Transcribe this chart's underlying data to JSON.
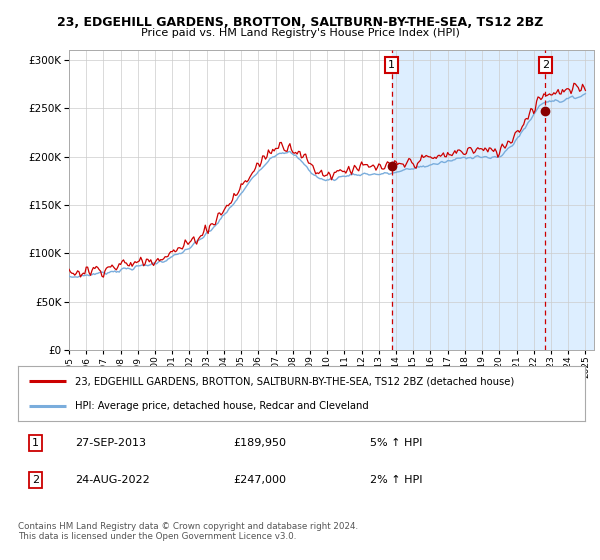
{
  "title1": "23, EDGEHILL GARDENS, BROTTON, SALTBURN-BY-THE-SEA, TS12 2BZ",
  "title2": "Price paid vs. HM Land Registry's House Price Index (HPI)",
  "legend_line1": "23, EDGEHILL GARDENS, BROTTON, SALTBURN-BY-THE-SEA, TS12 2BZ (detached house)",
  "legend_line2": "HPI: Average price, detached house, Redcar and Cleveland",
  "annotation1_date": "27-SEP-2013",
  "annotation1_price": "£189,950",
  "annotation1_hpi": "5% ↑ HPI",
  "annotation2_date": "24-AUG-2022",
  "annotation2_price": "£247,000",
  "annotation2_hpi": "2% ↑ HPI",
  "footer": "Contains HM Land Registry data © Crown copyright and database right 2024.\nThis data is licensed under the Open Government Licence v3.0.",
  "hpi_color": "#7aaddc",
  "hpi_fill_color": "#ddeeff",
  "price_color": "#cc0000",
  "annotation_color": "#cc0000",
  "grid_color": "#cccccc",
  "ylim": [
    0,
    310000
  ],
  "yticks": [
    0,
    50000,
    100000,
    150000,
    200000,
    250000,
    300000
  ]
}
